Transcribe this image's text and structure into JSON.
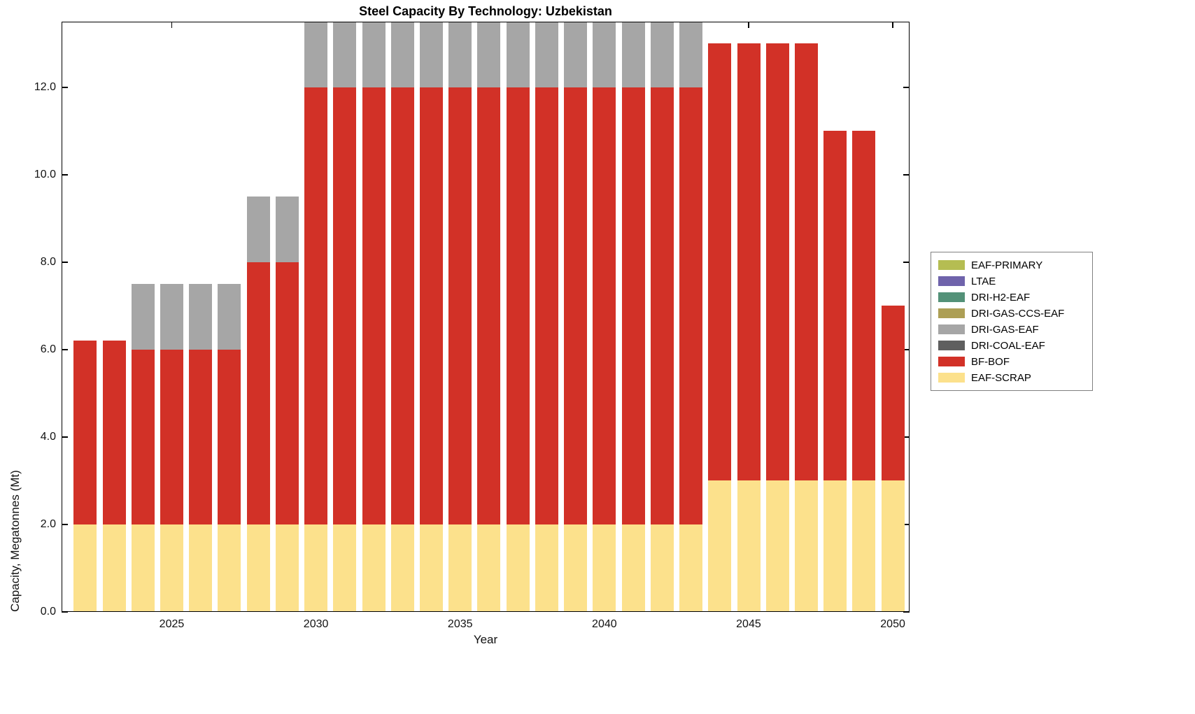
{
  "chart_data": {
    "type": "bar",
    "stacked": true,
    "title": "Steel Capacity By Technology: Uzbekistan",
    "xlabel": "Year",
    "ylabel": "Capacity, Megatonnes (Mt)",
    "grid": false,
    "legend_position": "right-outside",
    "xlim": [
      2021.18,
      2050.58
    ],
    "ylim": [
      0,
      13.5
    ],
    "xticks": [
      2025,
      2030,
      2035,
      2040,
      2045,
      2050
    ],
    "xtick_labels": [
      "2025",
      "2030",
      "2035",
      "2040",
      "2045",
      "2050"
    ],
    "yticks": [
      0,
      2,
      4,
      6,
      8,
      10,
      12
    ],
    "ytick_labels": [
      "0.0",
      "2.0",
      "4.0",
      "6.0",
      "8.0",
      "10.0",
      "12.0"
    ],
    "x": [
      2022,
      2023,
      2024,
      2025,
      2026,
      2027,
      2028,
      2029,
      2030,
      2031,
      2032,
      2033,
      2034,
      2035,
      2036,
      2037,
      2038,
      2039,
      2040,
      2041,
      2042,
      2043,
      2044,
      2045,
      2046,
      2047,
      2048,
      2049,
      2050
    ],
    "series": [
      {
        "name": "EAF-SCRAP",
        "color": "#fce18c",
        "values": [
          2,
          2,
          2,
          2,
          2,
          2,
          2,
          2,
          2,
          2,
          2,
          2,
          2,
          2,
          2,
          2,
          2,
          2,
          2,
          2,
          2,
          2,
          3,
          3,
          3,
          3,
          3,
          3,
          3
        ]
      },
      {
        "name": "BF-BOF",
        "color": "#d23127",
        "values": [
          4.2,
          4.2,
          4,
          4,
          4,
          4,
          6,
          6,
          10,
          10,
          10,
          10,
          10,
          10,
          10,
          10,
          10,
          10,
          10,
          10,
          10,
          10,
          10,
          10,
          10,
          10,
          8,
          8,
          4
        ]
      },
      {
        "name": "DRI-COAL-EAF",
        "color": "#5f5f5f",
        "values": [
          0,
          0,
          0,
          0,
          0,
          0,
          0,
          0,
          0,
          0,
          0,
          0,
          0,
          0,
          0,
          0,
          0,
          0,
          0,
          0,
          0,
          0,
          0,
          0,
          0,
          0,
          0,
          0,
          0
        ]
      },
      {
        "name": "DRI-GAS-EAF",
        "color": "#a6a6a6",
        "values": [
          0,
          0,
          1.5,
          1.5,
          1.5,
          1.5,
          1.5,
          1.5,
          1.5,
          1.5,
          1.5,
          1.5,
          1.5,
          1.5,
          1.5,
          1.5,
          1.5,
          1.5,
          1.5,
          1.5,
          1.5,
          1.5,
          0,
          0,
          0,
          0,
          0,
          0,
          0
        ]
      },
      {
        "name": "DRI-GAS-CCS-EAF",
        "color": "#ad9f55",
        "values": [
          0,
          0,
          0,
          0,
          0,
          0,
          0,
          0,
          0,
          0,
          0,
          0,
          0,
          0,
          0,
          0,
          0,
          0,
          0,
          0,
          0,
          0,
          0,
          0,
          0,
          0,
          0,
          0,
          0
        ]
      },
      {
        "name": "DRI-H2-EAF",
        "color": "#539178",
        "values": [
          0,
          0,
          0,
          0,
          0,
          0,
          0,
          0,
          0,
          0,
          0,
          0,
          0,
          0,
          0,
          0,
          0,
          0,
          0,
          0,
          0,
          0,
          0,
          0,
          0,
          0,
          0,
          0,
          0
        ]
      },
      {
        "name": "LTAE",
        "color": "#6f63ab",
        "values": [
          0,
          0,
          0,
          0,
          0,
          0,
          0,
          0,
          0,
          0,
          0,
          0,
          0,
          0,
          0,
          0,
          0,
          0,
          0,
          0,
          0,
          0,
          0,
          0,
          0,
          0,
          0,
          0,
          0
        ]
      },
      {
        "name": "EAF-PRIMARY",
        "color": "#b5bd52",
        "values": [
          0,
          0,
          0,
          0,
          0,
          0,
          0,
          0,
          0,
          0,
          0,
          0,
          0,
          0,
          0,
          0,
          0,
          0,
          0,
          0,
          0,
          0,
          0,
          0,
          0,
          0,
          0,
          0,
          0
        ]
      }
    ],
    "legend_order": [
      "EAF-PRIMARY",
      "LTAE",
      "DRI-H2-EAF",
      "DRI-GAS-CCS-EAF",
      "DRI-GAS-EAF",
      "DRI-COAL-EAF",
      "BF-BOF",
      "EAF-SCRAP"
    ]
  }
}
